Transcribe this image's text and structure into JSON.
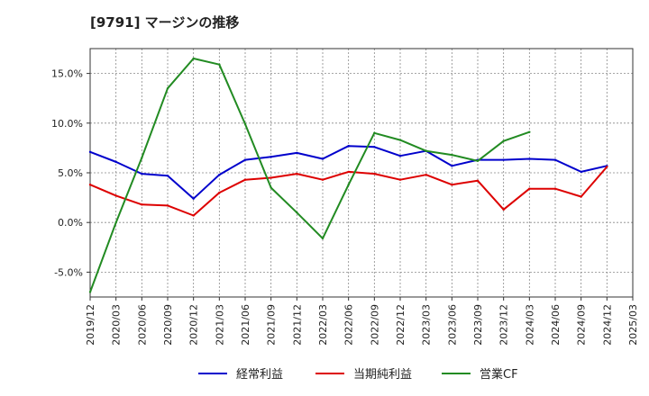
{
  "chart_data": {
    "type": "line",
    "title": "[9791]  マージンの推移",
    "xlabel": "",
    "ylabel": "",
    "ylim": [
      -7.5,
      17.5
    ],
    "yticks": [
      -5.0,
      0.0,
      5.0,
      10.0,
      15.0
    ],
    "ytick_labels": [
      "-5.0%",
      "0.0%",
      "5.0%",
      "10.0%",
      "15.0%"
    ],
    "grid": true,
    "legend_position": "bottom",
    "x_ticks": [
      "2019/12",
      "2020/03",
      "2020/06",
      "2020/09",
      "2020/12",
      "2021/03",
      "2021/06",
      "2021/09",
      "2021/12",
      "2022/03",
      "2022/06",
      "2022/09",
      "2022/12",
      "2023/03",
      "2023/06",
      "2023/09",
      "2023/12",
      "2024/03",
      "2024/06",
      "2024/09",
      "2024/12",
      "2025/03"
    ],
    "series": [
      {
        "name": "経常利益",
        "color": "#0000cc",
        "values": [
          7.1,
          6.1,
          4.9,
          4.7,
          2.4,
          4.8,
          6.3,
          6.6,
          7.0,
          6.4,
          7.7,
          7.6,
          6.7,
          7.2,
          5.7,
          6.3,
          6.3,
          6.4,
          6.3,
          5.1,
          5.7,
          null
        ]
      },
      {
        "name": "当期純利益",
        "color": "#dd0000",
        "values": [
          3.8,
          2.7,
          1.8,
          1.7,
          0.7,
          3.0,
          4.3,
          4.5,
          4.9,
          4.3,
          5.1,
          4.9,
          4.3,
          4.8,
          3.8,
          4.2,
          1.3,
          3.4,
          3.4,
          2.6,
          5.6,
          null
        ]
      },
      {
        "name": "営業CF",
        "color": "#228b22",
        "values": [
          -7.0,
          0.0,
          6.5,
          13.5,
          16.5,
          15.9,
          9.9,
          3.5,
          1.0,
          -1.6,
          3.8,
          9.0,
          8.3,
          7.2,
          6.8,
          6.2,
          8.2,
          9.1,
          null,
          null,
          null,
          null
        ]
      }
    ]
  }
}
